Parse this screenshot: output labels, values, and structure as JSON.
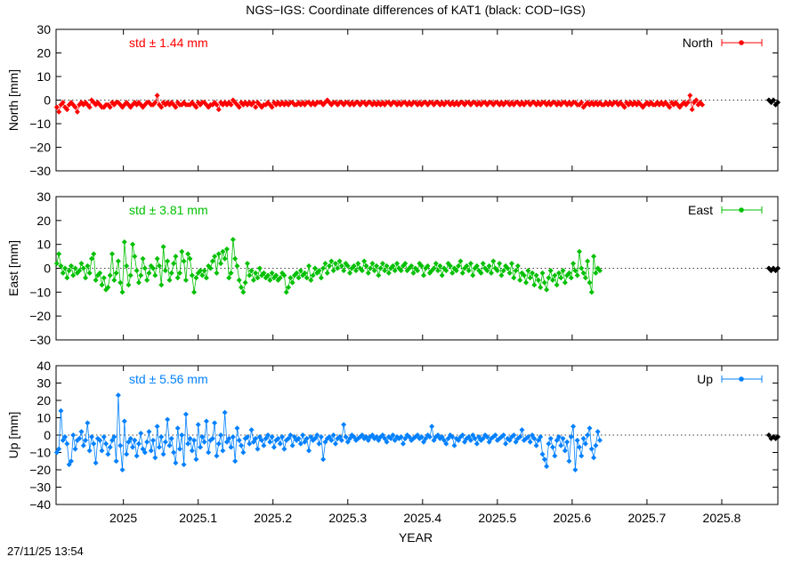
{
  "chart_data": {
    "type": "scatter",
    "title": "NGS−IGS: Coordinate differences of KAT1 (black: COD−IGS)",
    "xlabel": "YEAR",
    "xlim": [
      2024.91,
      2025.875
    ],
    "xticks": [
      "2025",
      "2025.1",
      "2025.2",
      "2025.3",
      "2025.4",
      "2025.5",
      "2025.6",
      "2025.7",
      "2025.8"
    ],
    "x_start": 2024.911,
    "x_step": 0.002739726,
    "timestamp": "27/11/25 13:54",
    "panels": [
      {
        "name": "North",
        "ylabel": "North [mm]",
        "ylim": [
          -30,
          30
        ],
        "yticks": [
          "30",
          "20",
          "10",
          "0",
          "−10",
          "−20",
          "−30"
        ],
        "color": "#ff0000",
        "std_label": "std ± 1.44 mm",
        "values": [
          -3,
          -5,
          -2,
          -1,
          -3,
          -4,
          -2,
          -1,
          -2,
          -3,
          -5,
          -2,
          -1,
          -2,
          -1,
          -2,
          -3,
          0,
          -1,
          -2,
          -1,
          -2,
          -3,
          -3,
          -2,
          -2,
          -3,
          -1,
          -2,
          -1,
          -1,
          -2,
          -3,
          -2,
          -1,
          -2,
          -3,
          -2,
          -1,
          -2,
          -1,
          -2,
          -3,
          -2,
          -1,
          -1,
          -2,
          -2,
          -1,
          2,
          -2,
          -3,
          -1,
          -2,
          -1,
          -2,
          -1,
          -2,
          -3,
          -1,
          -2,
          -2,
          -1,
          -2,
          -2,
          -2,
          -1,
          -2,
          -3,
          -1,
          -2,
          -1,
          -1,
          -2,
          -3,
          -2,
          -2,
          -1,
          -2,
          -4,
          -1,
          -2,
          -1,
          -2,
          -1,
          -2,
          0,
          -1,
          -2,
          -3,
          -1,
          -2,
          -1,
          -2,
          -1,
          -2,
          -1,
          -3,
          -1,
          -2,
          -3,
          -2,
          -2,
          -1,
          -2,
          -3,
          -1,
          -2,
          -1,
          -2,
          -1,
          -2,
          -1,
          -2,
          -1,
          -1,
          -2,
          -2,
          -1,
          -2,
          -1,
          -2,
          -1,
          -1,
          -2,
          -1,
          -2,
          -1,
          -1,
          -1,
          -2,
          -1,
          0,
          -1,
          -2,
          -1,
          -1,
          -2,
          -1,
          -1,
          -2,
          -1,
          -1,
          -2,
          -1,
          -2,
          -1,
          -1,
          -2,
          -1,
          -1,
          -2,
          -1,
          -1,
          -2,
          -1,
          -2,
          -1,
          -2,
          -1,
          -2,
          -1,
          -1,
          -2,
          -1,
          -1,
          -2,
          -1,
          -2,
          -1,
          -1,
          -2,
          -1,
          -2,
          -1,
          -1,
          -2,
          -1,
          -2,
          -1,
          -1,
          -2,
          -1,
          -1,
          -2,
          -1,
          -1,
          -2,
          -1,
          -2,
          -1,
          -1,
          -2,
          -1,
          -2,
          -1,
          -2,
          -1,
          -1,
          -2,
          -1,
          -1,
          -2,
          -1,
          -1,
          -2,
          -1,
          -2,
          -1,
          -1,
          -2,
          -1,
          -1,
          -2,
          -1,
          -1,
          -2,
          -1,
          -2,
          -1,
          -1,
          -2,
          -1,
          -2,
          -1,
          -1,
          -2,
          -1,
          -2,
          -1,
          -1,
          -2,
          -1,
          -1,
          -2,
          -1,
          -2,
          -1,
          -1,
          -2,
          -1,
          -2,
          -1,
          -1,
          -2,
          -1,
          -2,
          -1,
          -1,
          -2,
          -1,
          -2,
          -1,
          -1,
          -2,
          -2,
          -1,
          -3,
          -2,
          -1,
          -2,
          -1,
          -2,
          -1,
          -2,
          -1,
          -2,
          -2,
          -1,
          -2,
          -1,
          -2,
          -1,
          -1,
          -2,
          -1,
          -2,
          -3,
          -1,
          -2,
          -1,
          -2,
          -1,
          -2,
          -1,
          -2,
          -3,
          -2,
          -1,
          -2,
          -1,
          -2,
          -2,
          -1,
          -2,
          -1,
          -2,
          -1,
          -2,
          -3,
          -1,
          -2,
          -1,
          -2,
          -3,
          -2,
          -1,
          -2,
          -1,
          2,
          -4,
          -1,
          0,
          -2,
          -1,
          -2
        ],
        "black_values": [
          0,
          -1,
          0,
          -2,
          -1
        ]
      },
      {
        "name": "East",
        "ylabel": "East [mm]",
        "ylim": [
          -30,
          30
        ],
        "yticks": [
          "30",
          "20",
          "10",
          "0",
          "−10",
          "−20",
          "−30"
        ],
        "color": "#00c000",
        "std_label": "std ± 3.81 mm",
        "values": [
          2,
          6,
          1,
          -2,
          0,
          -4,
          -1,
          1,
          -3,
          0,
          -2,
          -1,
          2,
          0,
          -4,
          1,
          -2,
          4,
          6,
          -5,
          -3,
          -2,
          -7,
          -4,
          -9,
          -8,
          -3,
          6,
          -5,
          -2,
          3,
          -6,
          -10,
          11,
          1,
          -7,
          -3,
          10,
          5,
          -1,
          -6,
          -3,
          4,
          0,
          -5,
          -2,
          1,
          0,
          -3,
          4,
          1,
          -7,
          9,
          -1,
          3,
          -5,
          -2,
          2,
          5,
          -4,
          -2,
          7,
          3,
          -5,
          6,
          4,
          -3,
          -10,
          -4,
          -2,
          -1,
          -3,
          -1,
          -4,
          1,
          0,
          3,
          5,
          -2,
          6,
          2,
          7,
          4,
          8,
          -4,
          -2,
          12,
          4,
          1,
          -5,
          -8,
          -10,
          -6,
          2,
          -3,
          -1,
          -5,
          -2,
          -4,
          0,
          -3,
          -2,
          -4,
          -3,
          -5,
          -2,
          -4,
          -3,
          -5,
          -4,
          -2,
          -3,
          -10,
          -8,
          -4,
          -6,
          -3,
          -2,
          -4,
          -1,
          -3,
          -2,
          -4,
          1,
          -5,
          -3,
          0,
          -2,
          -1,
          -4,
          0,
          2,
          -2,
          1,
          3,
          -1,
          2,
          0,
          3,
          1,
          -1,
          2,
          1,
          -2,
          0,
          1,
          -1,
          2,
          0,
          -1,
          3,
          1,
          -2,
          0,
          2,
          -1,
          1,
          -3,
          0,
          2,
          -1,
          1,
          -2,
          0,
          1,
          -1,
          2,
          0,
          -1,
          1,
          2,
          -1,
          0,
          1,
          -2,
          0,
          -1,
          2,
          1,
          -3,
          0,
          1,
          -2,
          -1,
          0,
          2,
          -1,
          1,
          -3,
          0,
          -1,
          2,
          1,
          -2,
          0,
          -1,
          1,
          3,
          -2,
          0,
          1,
          -1,
          2,
          -3,
          0,
          1,
          -1,
          -2,
          2,
          0,
          -1,
          1,
          -2,
          3,
          0,
          -1,
          2,
          -3,
          -1,
          1,
          0,
          -2,
          2,
          -4,
          -1,
          1,
          -5,
          -2,
          -3,
          -6,
          -1,
          -4,
          -2,
          -7,
          -3,
          -5,
          -8,
          -2,
          -6,
          -9,
          -4,
          -1,
          -5,
          -3,
          -7,
          -2,
          -4,
          -1,
          -6,
          -3,
          -2,
          -4,
          2,
          -1,
          -3,
          7,
          0,
          -2,
          -4,
          3,
          -6,
          -10,
          5,
          -2,
          0,
          -1
        ],
        "black_values": [
          0,
          -1,
          0,
          -1,
          0
        ]
      },
      {
        "name": "Up",
        "ylabel": "Up [mm]",
        "ylim": [
          -40,
          40
        ],
        "yticks": [
          "40",
          "30",
          "20",
          "10",
          "0",
          "−10",
          "−20",
          "−30",
          "−40"
        ],
        "color": "#0080ff",
        "std_label": "std ± 5.56 mm",
        "values": [
          -10,
          -8,
          14,
          -3,
          -1,
          -5,
          -17,
          -15,
          0,
          -8,
          -3,
          -2,
          2,
          -6,
          -3,
          7,
          -9,
          -1,
          -5,
          -16,
          -2,
          -3,
          -9,
          -1,
          -5,
          -11,
          -7,
          -3,
          -1,
          -15,
          23,
          -6,
          -20,
          8,
          -11,
          -4,
          -2,
          -7,
          -3,
          -12,
          -5,
          1,
          -8,
          -10,
          -4,
          2,
          -9,
          -3,
          -13,
          5,
          -7,
          -1,
          -11,
          -4,
          9,
          -6,
          -2,
          -10,
          -16,
          4,
          -8,
          0,
          -17,
          12,
          -5,
          -2,
          -9,
          -3,
          -14,
          6,
          -7,
          -1,
          -4,
          8,
          -10,
          -3,
          -2,
          7,
          -12,
          -5,
          0,
          -9,
          13,
          -4,
          -2,
          -7,
          -1,
          -15,
          4,
          -3,
          -6,
          -10,
          -2,
          -1,
          -5,
          3,
          -4,
          -2,
          -8,
          -1,
          -3,
          -6,
          -2,
          0,
          -4,
          -1,
          -7,
          -3,
          -2,
          -5,
          -1,
          -8,
          -3,
          -2,
          0,
          -6,
          -1,
          -3,
          -2,
          -5,
          0,
          -4,
          -2,
          -9,
          -1,
          -3,
          -2,
          0,
          -5,
          -1,
          -14,
          -4,
          -2,
          -1,
          -3,
          0,
          -5,
          -2,
          -1,
          -3,
          6,
          -1,
          -4,
          -2,
          0,
          -1,
          -3,
          -2,
          -1,
          0,
          -2,
          -1,
          -3,
          -1,
          0,
          -2,
          -1,
          -3,
          -1,
          0,
          -2,
          -4,
          -1,
          -2,
          0,
          -3,
          -1,
          -2,
          -1,
          -5,
          -2,
          0,
          -1,
          -3,
          -2,
          -1,
          0,
          -2,
          -1,
          -4,
          -2,
          0,
          -1,
          5,
          -3,
          -1,
          0,
          -2,
          -1,
          -3,
          -5,
          -2,
          0,
          -1,
          -6,
          -2,
          -3,
          -1,
          0,
          -4,
          -2,
          -1,
          -3,
          0,
          -2,
          -5,
          -1,
          -3,
          -2,
          0,
          -1,
          -4,
          -2,
          -1,
          0,
          -3,
          -2,
          -1,
          0,
          -5,
          -2,
          -3,
          -1,
          0,
          -4,
          -2,
          -1,
          3,
          -3,
          -2,
          -1,
          -4,
          0,
          -2,
          -6,
          -3,
          -1,
          -11,
          -14,
          -18,
          -5,
          -2,
          -7,
          -12,
          -3,
          -1,
          -6,
          -2,
          -9,
          -4,
          -15,
          -1,
          5,
          -20,
          -3,
          -7,
          -12,
          -2,
          -5,
          0,
          4,
          -8,
          -13,
          -6,
          2,
          -3
        ],
        "black_values": [
          0,
          -2,
          -1,
          -2,
          -1
        ]
      }
    ]
  }
}
